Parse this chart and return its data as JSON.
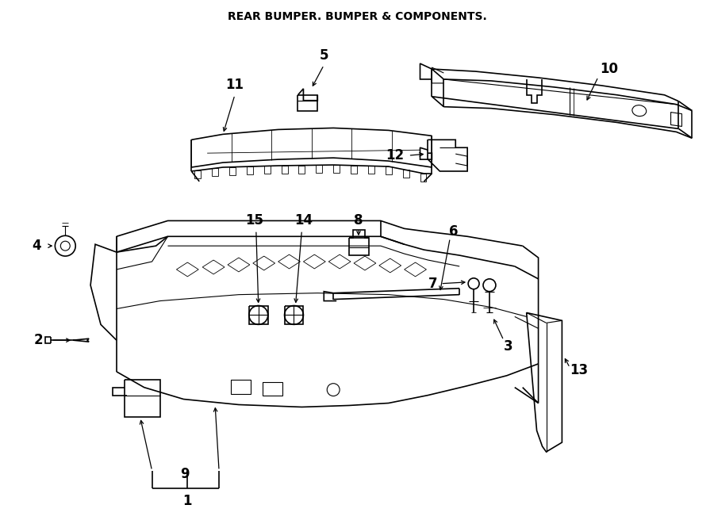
{
  "title": "REAR BUMPER. BUMPER & COMPONENTS.",
  "bg": "#ffffff",
  "lc": "#000000",
  "figsize": [
    9.0,
    6.61
  ],
  "dpi": 100
}
